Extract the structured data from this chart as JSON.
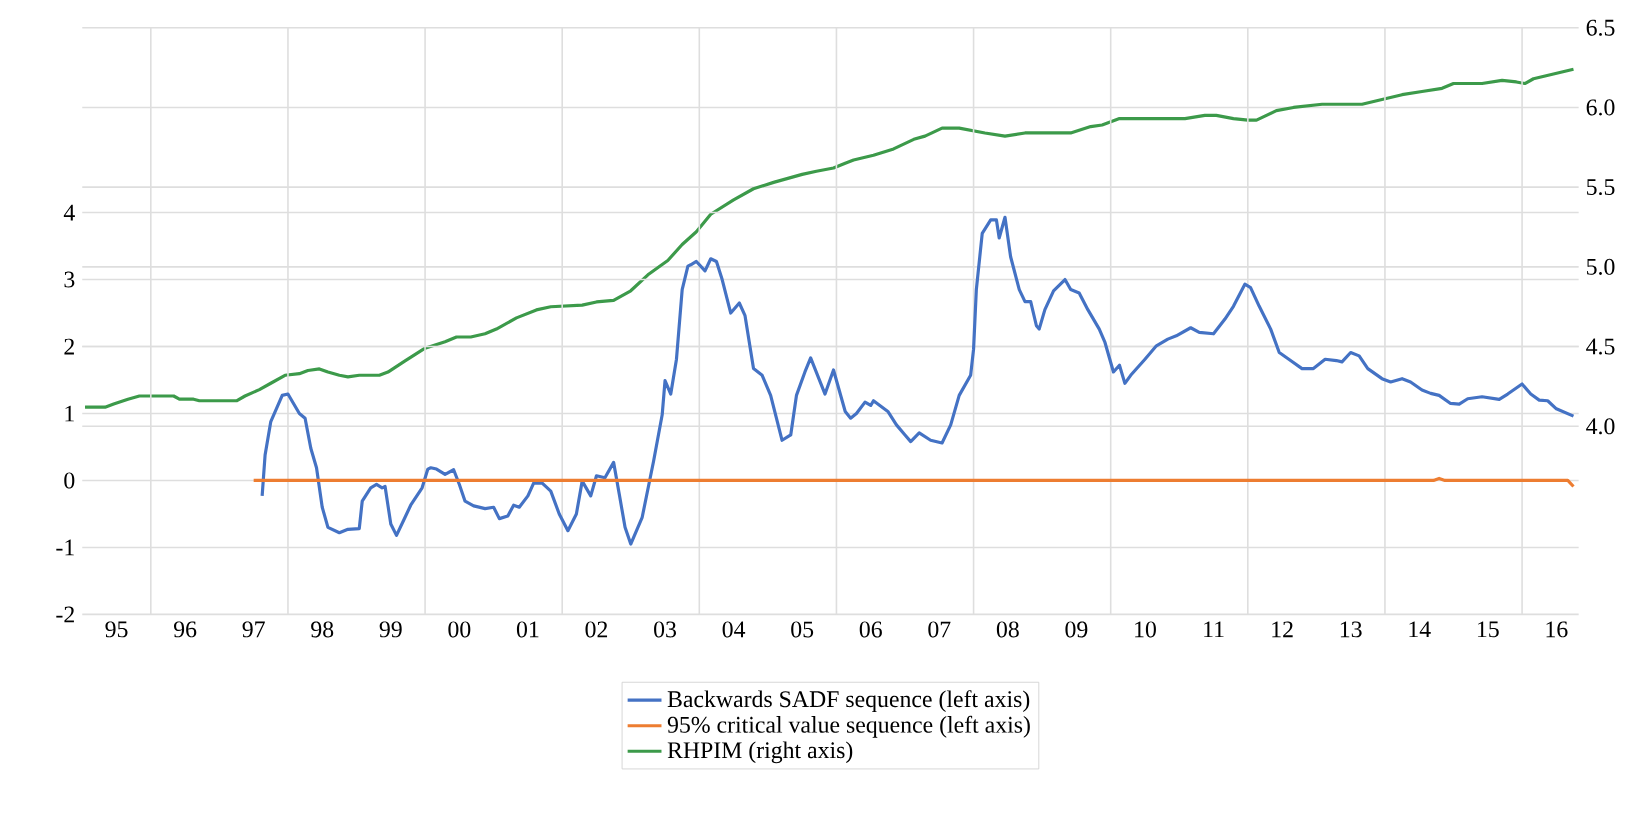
{
  "chart_data": {
    "type": "line",
    "xlim": [
      "1995-01-01",
      "2016-10-29"
    ],
    "ylim": [
      -2,
      6.76
    ],
    "y2lim": [
      2.82,
      6.5
    ],
    "xticks": [
      {
        "value": "1995-07-01",
        "label": "95"
      },
      {
        "value": "1996-07-01",
        "label": "96"
      },
      {
        "value": "1997-07-01",
        "label": "97"
      },
      {
        "value": "1998-07-01",
        "label": "98"
      },
      {
        "value": "1999-07-01",
        "label": "99"
      },
      {
        "value": "2000-07-01",
        "label": "00"
      },
      {
        "value": "2001-07-01",
        "label": "01"
      },
      {
        "value": "2002-07-01",
        "label": "02"
      },
      {
        "value": "2003-07-01",
        "label": "03"
      },
      {
        "value": "2004-07-01",
        "label": "04"
      },
      {
        "value": "2005-07-01",
        "label": "05"
      },
      {
        "value": "2006-07-01",
        "label": "06"
      },
      {
        "value": "2007-07-01",
        "label": "07"
      },
      {
        "value": "2008-07-01",
        "label": "08"
      },
      {
        "value": "2009-07-01",
        "label": "09"
      },
      {
        "value": "2010-07-01",
        "label": "10"
      },
      {
        "value": "2011-07-01",
        "label": "11"
      },
      {
        "value": "2012-07-01",
        "label": "12"
      },
      {
        "value": "2013-07-01",
        "label": "13"
      },
      {
        "value": "2014-07-01",
        "label": "14"
      },
      {
        "value": "2015-07-01",
        "label": "15"
      },
      {
        "value": "2016-07-01",
        "label": "16"
      },
      {
        "value": "1996-01-01",
        "label": null
      },
      {
        "value": "1998-01-01",
        "label": null
      },
      {
        "value": "2000-01-01",
        "label": null
      },
      {
        "value": "2002-01-01",
        "label": null
      },
      {
        "value": "2004-01-01",
        "label": null
      },
      {
        "value": "2006-01-01",
        "label": null
      },
      {
        "value": "2008-01-01",
        "label": null
      },
      {
        "value": "2010-01-01",
        "label": null
      },
      {
        "value": "2012-01-01",
        "label": null
      },
      {
        "value": "2014-01-01",
        "label": null
      },
      {
        "value": "2016-01-01",
        "label": null
      }
    ],
    "yticks": [
      -2,
      -1,
      0,
      1,
      2,
      3,
      4
    ],
    "y2ticks": [
      {
        "value": 4.0,
        "label": "4.0"
      },
      {
        "value": 4.5,
        "label": "4.5"
      },
      {
        "value": 5.0,
        "label": "5.0"
      },
      {
        "value": 5.5,
        "label": "5.5"
      },
      {
        "value": 6.0,
        "label": "6.0"
      },
      {
        "value": 6.5,
        "label": "6.5"
      }
    ],
    "grid": true,
    "legend": "bottom",
    "line_style": "solid",
    "series": [
      {
        "name": "Backwards SADF sequence (left axis)",
        "color": "#4472c4",
        "x": [
          "1997-08-16",
          "1997-09-01",
          "1997-10-01",
          "1997-12-01",
          "1998-01-01",
          "1998-01-16",
          "1998-03-01",
          "1998-04-01",
          "1998-05-01",
          "1998-06-01",
          "1998-07-01",
          "1998-08-01",
          "1998-10-01",
          "1998-11-16",
          "1999-01-16",
          "1999-02-01",
          "1999-03-16",
          "1999-04-16",
          "1999-05-16",
          "1999-06-01",
          "1999-07-01",
          "1999-08-01",
          "1999-09-16",
          "1999-10-16",
          "1999-12-16",
          "2000-01-16",
          "2000-02-01",
          "2000-03-01",
          "2000-04-16",
          "2000-06-01",
          "2000-07-01",
          "2000-08-01",
          "2000-09-16",
          "2000-11-16",
          "2001-01-01",
          "2001-02-01",
          "2001-03-16",
          "2001-04-16",
          "2001-05-16",
          "2001-07-01",
          "2001-08-01",
          "2001-09-16",
          "2001-11-01",
          "2001-12-16",
          "2002-02-01",
          "2002-03-16",
          "2002-04-16",
          "2002-06-01",
          "2002-07-01",
          "2002-08-16",
          "2002-10-01",
          "2002-11-01",
          "2002-12-01",
          "2003-01-01",
          "2003-03-01",
          "2003-05-01",
          "2003-06-16",
          "2003-07-01",
          "2003-08-01",
          "2003-09-01",
          "2003-10-01",
          "2003-11-01",
          "2003-11-16",
          "2003-12-16",
          "2004-02-01",
          "2004-03-01",
          "2004-04-01",
          "2004-05-01",
          "2004-06-16",
          "2004-08-01",
          "2004-09-01",
          "2004-10-16",
          "2004-12-01",
          "2005-01-16",
          "2005-03-16",
          "2005-05-01",
          "2005-06-01",
          "2005-07-16",
          "2005-08-16",
          "2005-11-01",
          "2005-12-16",
          "2006-02-16",
          "2006-03-16",
          "2006-04-16",
          "2006-06-01",
          "2006-07-01",
          "2006-07-16",
          "2006-10-01",
          "2006-11-16",
          "2007-01-01",
          "2007-02-01",
          "2007-03-16",
          "2007-05-16",
          "2007-07-16",
          "2007-09-01",
          "2007-10-16",
          "2007-12-16",
          "2008-01-01",
          "2008-01-16",
          "2008-02-16",
          "2008-04-01",
          "2008-05-01",
          "2008-05-16",
          "2008-06-16",
          "2008-07-16",
          "2008-09-01",
          "2008-10-01",
          "2008-11-01",
          "2008-12-01",
          "2008-12-16",
          "2009-01-16",
          "2009-03-01",
          "2009-05-01",
          "2009-06-01",
          "2009-07-16",
          "2009-09-01",
          "2009-11-01",
          "2009-12-01",
          "2010-01-16",
          "2010-02-16",
          "2010-03-16",
          "2010-04-16",
          "2010-07-01",
          "2010-09-01",
          "2010-11-01",
          "2010-12-16",
          "2011-03-01",
          "2011-04-16",
          "2011-07-01",
          "2011-09-01",
          "2011-10-16",
          "2011-12-16",
          "2012-01-16",
          "2012-03-01",
          "2012-05-01",
          "2012-06-16",
          "2012-08-16",
          "2012-10-16",
          "2012-12-16",
          "2013-02-16",
          "2013-04-16",
          "2013-05-16",
          "2013-07-01",
          "2013-08-16",
          "2013-10-01",
          "2013-12-16",
          "2014-02-01",
          "2014-04-01",
          "2014-05-16",
          "2014-07-16",
          "2014-09-01",
          "2014-10-16",
          "2014-12-16",
          "2015-02-01",
          "2015-03-16",
          "2015-06-01",
          "2015-09-01",
          "2015-10-16",
          "2016-01-01",
          "2016-02-16",
          "2016-04-01",
          "2016-05-16",
          "2016-07-01",
          "2016-10-01"
        ],
        "values": [
          -0.23,
          0.38,
          0.88,
          1.27,
          1.29,
          1.22,
          1.0,
          0.93,
          0.48,
          0.19,
          -0.4,
          -0.7,
          -0.78,
          -0.73,
          -0.72,
          -0.31,
          -0.11,
          -0.06,
          -0.11,
          -0.09,
          -0.65,
          -0.82,
          -0.55,
          -0.37,
          -0.11,
          0.17,
          0.19,
          0.17,
          0.09,
          0.16,
          -0.06,
          -0.31,
          -0.38,
          -0.42,
          -0.4,
          -0.57,
          -0.53,
          -0.37,
          -0.4,
          -0.23,
          -0.04,
          -0.04,
          -0.16,
          -0.5,
          -0.75,
          -0.5,
          -0.01,
          -0.23,
          0.07,
          0.04,
          0.27,
          -0.21,
          -0.7,
          -0.95,
          -0.55,
          0.29,
          0.98,
          1.49,
          1.29,
          1.81,
          2.85,
          3.2,
          3.22,
          3.27,
          3.13,
          3.31,
          3.27,
          3.0,
          2.5,
          2.65,
          2.46,
          1.67,
          1.57,
          1.27,
          0.6,
          0.68,
          1.27,
          1.62,
          1.83,
          1.29,
          1.65,
          1.03,
          0.93,
          1.0,
          1.17,
          1.12,
          1.19,
          1.03,
          0.83,
          0.68,
          0.58,
          0.71,
          0.6,
          0.56,
          0.83,
          1.27,
          1.57,
          1.96,
          2.85,
          3.69,
          3.89,
          3.89,
          3.62,
          3.93,
          3.34,
          2.85,
          2.67,
          2.67,
          2.31,
          2.26,
          2.55,
          2.83,
          3.0,
          2.85,
          2.8,
          2.55,
          2.26,
          2.06,
          1.62,
          1.72,
          1.45,
          1.57,
          1.81,
          2.01,
          2.11,
          2.16,
          2.28,
          2.21,
          2.19,
          2.41,
          2.6,
          2.93,
          2.88,
          2.6,
          2.26,
          1.91,
          1.79,
          1.67,
          1.67,
          1.81,
          1.79,
          1.77,
          1.91,
          1.86,
          1.67,
          1.52,
          1.47,
          1.52,
          1.47,
          1.35,
          1.3,
          1.27,
          1.15,
          1.14,
          1.22,
          1.25,
          1.21,
          1.29,
          1.44,
          1.29,
          1.2,
          1.19,
          1.07,
          0.96
        ]
      },
      {
        "name": "95% critical value sequence (left axis)",
        "color": "#ed7d31",
        "x": [
          "1997-07-01",
          "2014-09-16",
          "2014-10-16",
          "2014-11-16",
          "2016-09-01",
          "2016-10-01"
        ],
        "values": [
          0,
          0,
          0.03,
          0,
          0,
          -0.09
        ]
      },
      {
        "name": "RHPIM (right axis)",
        "color": "#3c9a4a",
        "axis": "y2",
        "x": [
          "1995-01-16",
          "1995-03-01",
          "1995-05-01",
          "1995-06-16",
          "1995-09-01",
          "1995-11-01",
          "1996-01-01",
          "1996-05-01",
          "1996-06-01",
          "1996-08-16",
          "1996-09-16",
          "1997-04-01",
          "1997-05-16",
          "1997-08-01",
          "1997-10-01",
          "1997-12-16",
          "1998-03-01",
          "1998-04-16",
          "1998-06-16",
          "1998-08-01",
          "1998-10-01",
          "1998-11-16",
          "1999-01-16",
          "1999-05-01",
          "1999-06-16",
          "1999-09-16",
          "2000-01-01",
          "2000-04-16",
          "2000-06-16",
          "2000-09-01",
          "2000-11-16",
          "2001-01-16",
          "2001-05-01",
          "2001-08-16",
          "2001-11-01",
          "2002-04-16",
          "2002-07-01",
          "2002-10-01",
          "2003-01-01",
          "2003-04-01",
          "2003-07-16",
          "2003-10-01",
          "2003-12-16",
          "2004-03-01",
          "2004-07-01",
          "2004-10-16",
          "2005-02-01",
          "2005-07-01",
          "2005-09-16",
          "2005-12-16",
          "2006-02-16",
          "2006-04-01",
          "2006-07-16",
          "2006-11-01",
          "2007-02-16",
          "2007-04-16",
          "2007-07-16",
          "2007-10-16",
          "2008-03-01",
          "2008-06-16",
          "2008-10-01",
          "2009-01-16",
          "2009-06-01",
          "2009-09-16",
          "2009-11-16",
          "2010-02-16",
          "2010-08-01",
          "2011-02-01",
          "2011-05-16",
          "2011-07-16",
          "2011-10-16",
          "2012-01-01",
          "2012-02-16",
          "2012-06-01",
          "2012-09-01",
          "2013-02-01",
          "2013-09-01",
          "2013-12-16",
          "2014-04-01",
          "2014-07-16",
          "2014-11-01",
          "2015-01-01",
          "2015-06-01",
          "2015-09-16",
          "2015-12-01",
          "2016-01-16",
          "2016-03-01",
          "2016-06-16",
          "2016-10-01"
        ],
        "values": [
          4.12,
          4.12,
          4.12,
          4.14,
          4.17,
          4.19,
          4.19,
          4.19,
          4.17,
          4.17,
          4.16,
          4.16,
          4.19,
          4.23,
          4.27,
          4.32,
          4.33,
          4.35,
          4.36,
          4.34,
          4.32,
          4.31,
          4.32,
          4.32,
          4.34,
          4.41,
          4.49,
          4.53,
          4.56,
          4.56,
          4.58,
          4.61,
          4.68,
          4.73,
          4.75,
          4.76,
          4.78,
          4.79,
          4.85,
          4.95,
          5.04,
          5.14,
          5.22,
          5.33,
          5.42,
          5.49,
          5.53,
          5.58,
          5.6,
          5.62,
          5.65,
          5.67,
          5.7,
          5.74,
          5.8,
          5.82,
          5.87,
          5.87,
          5.84,
          5.82,
          5.84,
          5.84,
          5.84,
          5.88,
          5.89,
          5.93,
          5.93,
          5.93,
          5.95,
          5.95,
          5.93,
          5.92,
          5.92,
          5.98,
          6.0,
          6.02,
          6.02,
          6.05,
          6.08,
          6.1,
          6.12,
          6.15,
          6.15,
          6.17,
          6.16,
          6.15,
          6.18,
          6.21,
          6.24
        ]
      }
    ]
  }
}
